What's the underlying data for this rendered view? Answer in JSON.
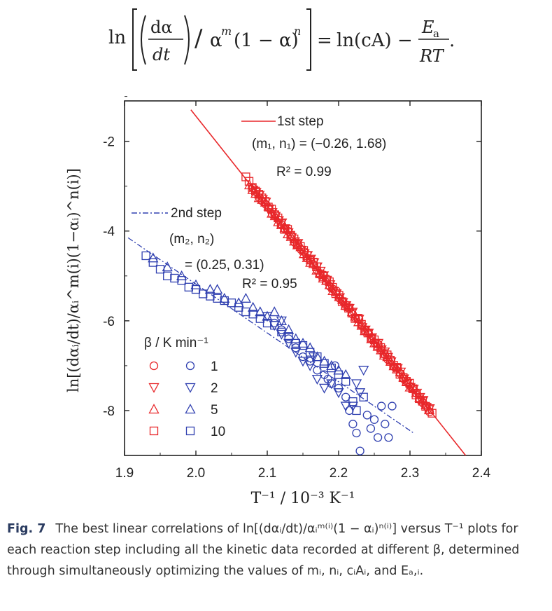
{
  "equation": {
    "ln": "ln",
    "d_alpha": "dα",
    "d_t": "dt",
    "slash": "/",
    "alpha_m": "α",
    "m": "m",
    "one_minus": "(1 − α)",
    "n": "n",
    "equals": "=",
    "ln_cA": "ln(cA) −",
    "Ea": "E",
    "Ea_sub": "a",
    "RT": "RT",
    "period": "."
  },
  "chart_data": {
    "type": "scatter",
    "xlabel": "T⁻¹ / 10⁻³ K⁻¹",
    "ylabel": "ln[(dαᵢ/dt)/αᵢ^m(i)(1−αᵢ)^n(i)]",
    "xlim": [
      1.9,
      2.4
    ],
    "ylim": [
      -9,
      -1.1
    ],
    "xticks": [
      1.9,
      2.0,
      2.1,
      2.2,
      2.3,
      2.4
    ],
    "yticks": [
      -2,
      -4,
      -6,
      -8
    ],
    "grid": false,
    "legend_title": "β / K min⁻¹",
    "legend_location": "lower-left",
    "legend_rows": [
      "1",
      "2",
      "5",
      "10"
    ],
    "colors": {
      "step1": "#e8272a",
      "step2": "#3040b0"
    },
    "markers": [
      "circle",
      "triangle-down",
      "triangle-up",
      "square"
    ],
    "fit_lines": [
      {
        "name": "1st step",
        "style": "solid",
        "color": "#e8272a",
        "x": [
          1.993,
          2.378
        ],
        "y": [
          -1.3,
          -9.0
        ],
        "params": "(m₁, n₁) = (−0.26, 1.68)",
        "r2": "R² = 0.99"
      },
      {
        "name": "2nd step",
        "style": "dash-dot",
        "color": "#3040b0",
        "x": [
          1.905,
          2.305
        ],
        "y": [
          -4.15,
          -8.5
        ],
        "params_line1": "(m₂, n₂)",
        "params_line2": "= (0.25, 0.31)",
        "r2": "R² = 0.95"
      }
    ],
    "series": [
      {
        "step": "1st step",
        "beta": "1",
        "marker": "circle",
        "x_range": [
          2.08,
          2.33
        ],
        "scatter": 0.05
      },
      {
        "step": "1st step",
        "beta": "2",
        "marker": "triangle-down",
        "x_range": [
          2.08,
          2.33
        ],
        "scatter": 0.05
      },
      {
        "step": "1st step",
        "beta": "5",
        "marker": "triangle-up",
        "x_range": [
          2.075,
          2.33
        ],
        "scatter": 0.05
      },
      {
        "step": "1st step",
        "beta": "10",
        "marker": "square",
        "x_range": [
          2.07,
          2.335
        ],
        "scatter": 0.05
      },
      {
        "step": "2nd step",
        "beta": "1",
        "marker": "circle",
        "points": [
          [
            2.14,
            -6.6
          ],
          [
            2.15,
            -6.8
          ],
          [
            2.16,
            -6.9
          ],
          [
            2.17,
            -7.1
          ],
          [
            2.18,
            -7.2
          ],
          [
            2.19,
            -7.4
          ],
          [
            2.2,
            -7.5
          ],
          [
            2.21,
            -7.7
          ],
          [
            2.215,
            -8.0
          ],
          [
            2.22,
            -8.3
          ],
          [
            2.225,
            -8.5
          ],
          [
            2.23,
            -8.9
          ],
          [
            2.24,
            -8.1
          ],
          [
            2.245,
            -8.4
          ],
          [
            2.25,
            -8.2
          ],
          [
            2.255,
            -8.6
          ],
          [
            2.26,
            -7.9
          ],
          [
            2.265,
            -8.3
          ],
          [
            2.27,
            -8.6
          ],
          [
            2.275,
            -7.9
          ],
          [
            2.13,
            -6.4
          ],
          [
            2.12,
            -6.2
          ],
          [
            2.11,
            -6.05
          ],
          [
            2.185,
            -7.3
          ],
          [
            2.195,
            -7.0
          ]
        ]
      },
      {
        "step": "2nd step",
        "beta": "2",
        "marker": "triangle-down",
        "points": [
          [
            2.1,
            -5.9
          ],
          [
            2.11,
            -6.1
          ],
          [
            2.12,
            -6.3
          ],
          [
            2.13,
            -6.5
          ],
          [
            2.14,
            -6.7
          ],
          [
            2.15,
            -6.9
          ],
          [
            2.16,
            -7.0
          ],
          [
            2.17,
            -7.3
          ],
          [
            2.18,
            -7.5
          ],
          [
            2.19,
            -7.4
          ],
          [
            2.2,
            -7.6
          ],
          [
            2.21,
            -7.9
          ],
          [
            2.22,
            -7.9
          ],
          [
            2.23,
            -7.6
          ],
          [
            2.235,
            -7.1
          ],
          [
            2.225,
            -7.4
          ],
          [
            2.165,
            -6.8
          ],
          [
            2.12,
            -6.0
          ]
        ]
      },
      {
        "step": "2nd step",
        "beta": "5",
        "marker": "triangle-up",
        "points": [
          [
            1.94,
            -4.6
          ],
          [
            1.96,
            -4.8
          ],
          [
            1.98,
            -5.0
          ],
          [
            2.0,
            -5.2
          ],
          [
            2.02,
            -5.3
          ],
          [
            2.04,
            -5.5
          ],
          [
            2.06,
            -5.6
          ],
          [
            2.08,
            -5.7
          ],
          [
            2.09,
            -5.8
          ],
          [
            2.1,
            -5.9
          ],
          [
            2.11,
            -5.8
          ],
          [
            2.12,
            -6.0
          ],
          [
            2.13,
            -6.2
          ],
          [
            2.14,
            -6.4
          ],
          [
            2.15,
            -6.5
          ],
          [
            2.16,
            -6.6
          ],
          [
            2.17,
            -6.8
          ],
          [
            2.18,
            -6.9
          ],
          [
            2.19,
            -7.0
          ],
          [
            2.2,
            -7.1
          ],
          [
            2.21,
            -7.2
          ],
          [
            2.03,
            -5.3
          ],
          [
            2.07,
            -5.5
          ]
        ]
      },
      {
        "step": "2nd step",
        "beta": "10",
        "marker": "square",
        "points": [
          [
            1.93,
            -4.55
          ],
          [
            1.94,
            -4.7
          ],
          [
            1.95,
            -4.85
          ],
          [
            1.96,
            -5.0
          ],
          [
            1.97,
            -5.05
          ],
          [
            1.98,
            -5.1
          ],
          [
            1.99,
            -5.25
          ],
          [
            2.0,
            -5.3
          ],
          [
            2.01,
            -5.4
          ],
          [
            2.02,
            -5.45
          ],
          [
            2.03,
            -5.5
          ],
          [
            2.04,
            -5.55
          ],
          [
            2.05,
            -5.6
          ],
          [
            2.06,
            -5.7
          ],
          [
            2.07,
            -5.8
          ],
          [
            2.08,
            -5.85
          ],
          [
            2.09,
            -5.95
          ],
          [
            2.1,
            -6.05
          ],
          [
            2.11,
            -6.1
          ],
          [
            2.12,
            -6.25
          ],
          [
            2.13,
            -6.35
          ],
          [
            2.14,
            -6.5
          ],
          [
            2.15,
            -6.55
          ],
          [
            2.16,
            -6.7
          ],
          [
            2.17,
            -6.8
          ],
          [
            2.18,
            -6.95
          ],
          [
            2.19,
            -7.05
          ],
          [
            2.2,
            -7.2
          ],
          [
            2.21,
            -7.35
          ],
          [
            2.22,
            -7.8
          ],
          [
            2.225,
            -8.0
          ],
          [
            2.235,
            -7.7
          ]
        ]
      }
    ]
  },
  "caption": {
    "fig": "Fig. 7",
    "text": "The best linear correlations of ln[(dαᵢ/dt)/αᵢᵐ⁽ⁱ⁾(1 − αᵢ)ⁿ⁽ⁱ⁾] versus T⁻¹ plots for each reaction step including all the kinetic data recorded at different β, determined through simultaneously optimizing the values of mᵢ, nᵢ, cᵢAᵢ, and Eₐ,ᵢ."
  }
}
